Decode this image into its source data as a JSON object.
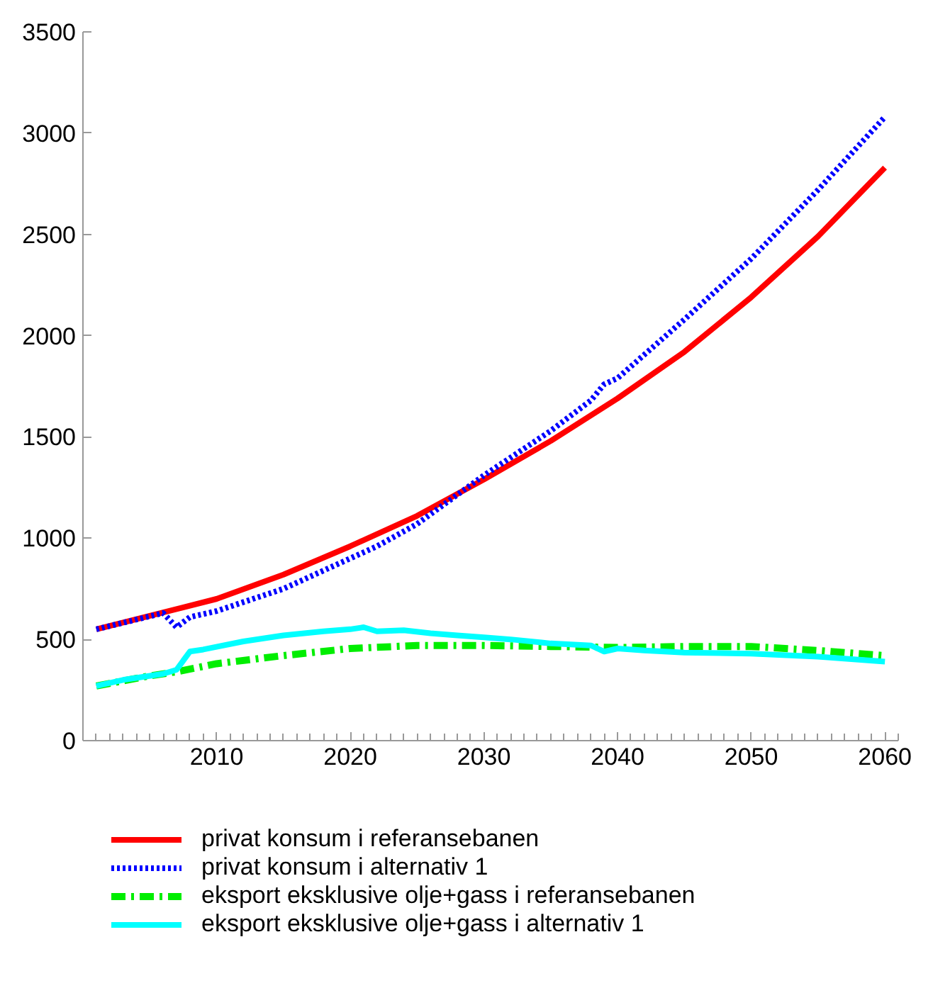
{
  "chart_data": {
    "type": "line",
    "xlim": [
      2000,
      2061
    ],
    "ylim": [
      0,
      3500
    ],
    "xticks": [
      2010,
      2020,
      2030,
      2040,
      2050,
      2060
    ],
    "yticks": [
      0,
      500,
      1000,
      1500,
      2000,
      2500,
      3000,
      3500
    ],
    "grid": false,
    "legend": "bottom",
    "series": [
      {
        "name": "privat konsum i referansebanen",
        "color": "#ff0000",
        "line_style": "solid",
        "x": [
          2001,
          2007,
          2010,
          2015,
          2020,
          2025,
          2030,
          2035,
          2040,
          2045,
          2050,
          2055,
          2060
        ],
        "values": [
          550,
          650,
          700,
          820,
          960,
          1110,
          1290,
          1480,
          1690,
          1920,
          2190,
          2490,
          2830
        ]
      },
      {
        "name": "privat konsum i alternativ 1",
        "color": "#0000ff",
        "line_style": "dotted",
        "x": [
          2001,
          2006,
          2007,
          2008,
          2010,
          2015,
          2020,
          2022,
          2025,
          2030,
          2035,
          2038,
          2039,
          2040,
          2045,
          2050,
          2055,
          2060
        ],
        "values": [
          550,
          630,
          560,
          610,
          640,
          750,
          900,
          960,
          1070,
          1310,
          1530,
          1680,
          1760,
          1790,
          2080,
          2380,
          2720,
          3080
        ]
      },
      {
        "name": "eksport eksklusive olje+gass i referansebanen",
        "color": "#00ee00",
        "line_style": "dashdot",
        "x": [
          2001,
          2005,
          2007,
          2010,
          2015,
          2020,
          2025,
          2030,
          2035,
          2040,
          2045,
          2050,
          2055,
          2060
        ],
        "values": [
          270,
          320,
          340,
          380,
          420,
          455,
          470,
          470,
          465,
          460,
          465,
          465,
          445,
          420
        ]
      },
      {
        "name": "eksport eksklusive olje+gass i alternativ 1",
        "color": "#00ffff",
        "line_style": "solid",
        "x": [
          2001,
          2003,
          2006,
          2007,
          2008,
          2009,
          2012,
          2015,
          2018,
          2020,
          2021,
          2022,
          2024,
          2026,
          2028,
          2030,
          2032,
          2035,
          2038,
          2039,
          2040,
          2042,
          2045,
          2050,
          2055,
          2060
        ],
        "values": [
          270,
          300,
          330,
          350,
          440,
          450,
          490,
          520,
          540,
          550,
          560,
          540,
          545,
          530,
          520,
          510,
          500,
          480,
          470,
          440,
          455,
          445,
          435,
          430,
          415,
          390
        ]
      }
    ]
  }
}
